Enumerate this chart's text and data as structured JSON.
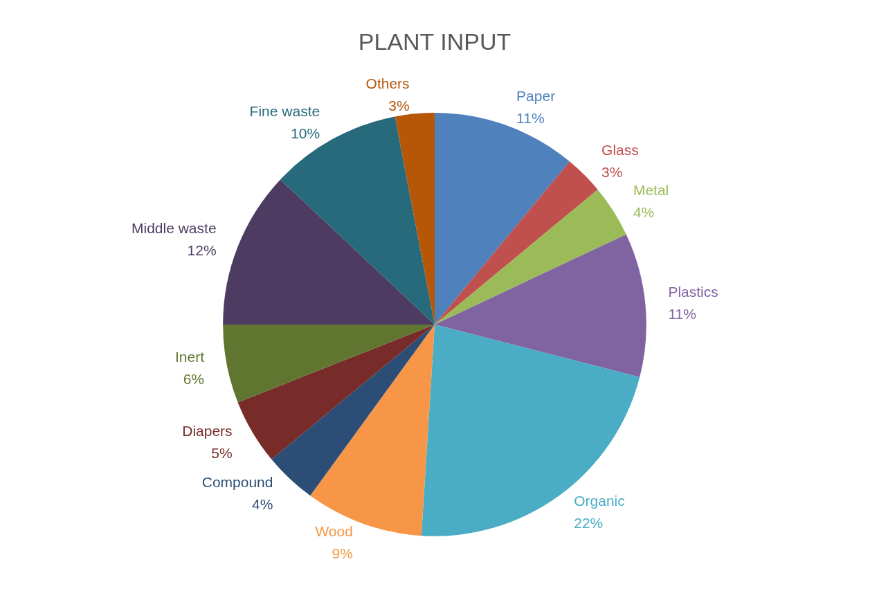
{
  "chart_data": {
    "type": "pie",
    "title": "PLANT INPUT",
    "categories": [
      "Paper",
      "Glass",
      "Metal",
      "Plastics",
      "Organic",
      "Wood",
      "Compound",
      "Diapers",
      "Inert",
      "Middle waste",
      "Fine waste",
      "Others"
    ],
    "values": [
      11,
      3,
      4,
      11,
      22,
      9,
      4,
      5,
      6,
      12,
      10,
      3
    ],
    "value_labels": [
      "11%",
      "3%",
      "4%",
      "11%",
      "22%",
      "9%",
      "4%",
      "5%",
      "6%",
      "12%",
      "10%",
      "3%"
    ],
    "colors": [
      "#4f81bd",
      "#c0504d",
      "#9bbb59",
      "#8064a2",
      "#4bacc6",
      "#f79646",
      "#2c4d75",
      "#772c2a",
      "#5f7530",
      "#4d3b62",
      "#276a7c",
      "#b65708"
    ],
    "legend": false
  }
}
